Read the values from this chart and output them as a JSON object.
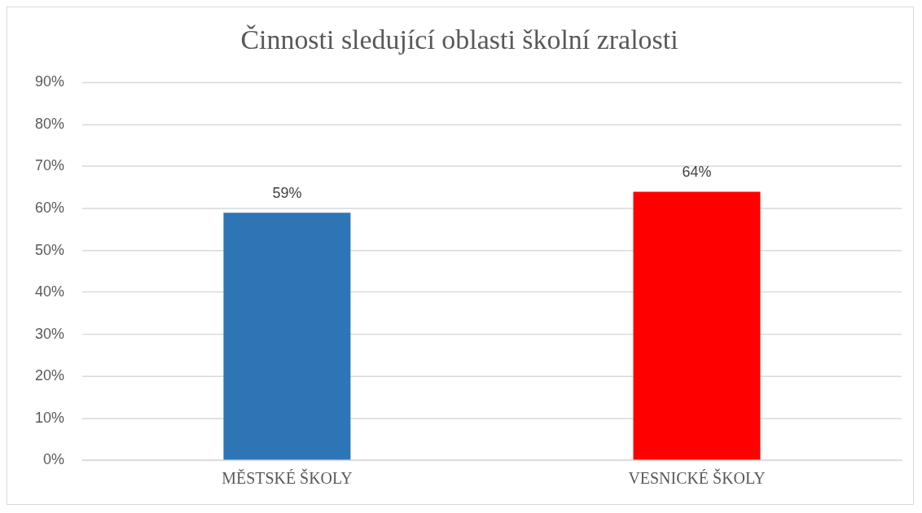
{
  "chart_data": {
    "type": "bar",
    "title": "Činnosti sledující oblasti školní zralosti",
    "categories": [
      "MĚSTSKÉ ŠKOLY",
      "VESNICKÉ ŠKOLY"
    ],
    "values": [
      59,
      64
    ],
    "colors": [
      "#2e75b6",
      "#ff0000"
    ],
    "value_labels": [
      "59%",
      "64%"
    ],
    "ylim": [
      0,
      90
    ],
    "yticks": [
      {
        "value": 0,
        "label": "0%"
      },
      {
        "value": 10,
        "label": "10%"
      },
      {
        "value": 20,
        "label": "20%"
      },
      {
        "value": 30,
        "label": "30%"
      },
      {
        "value": 40,
        "label": "40%"
      },
      {
        "value": 50,
        "label": "50%"
      },
      {
        "value": 60,
        "label": "60%"
      },
      {
        "value": 70,
        "label": "70%"
      },
      {
        "value": 80,
        "label": "80%"
      },
      {
        "value": 90,
        "label": "90%"
      }
    ],
    "grid": "y",
    "legend": false
  }
}
